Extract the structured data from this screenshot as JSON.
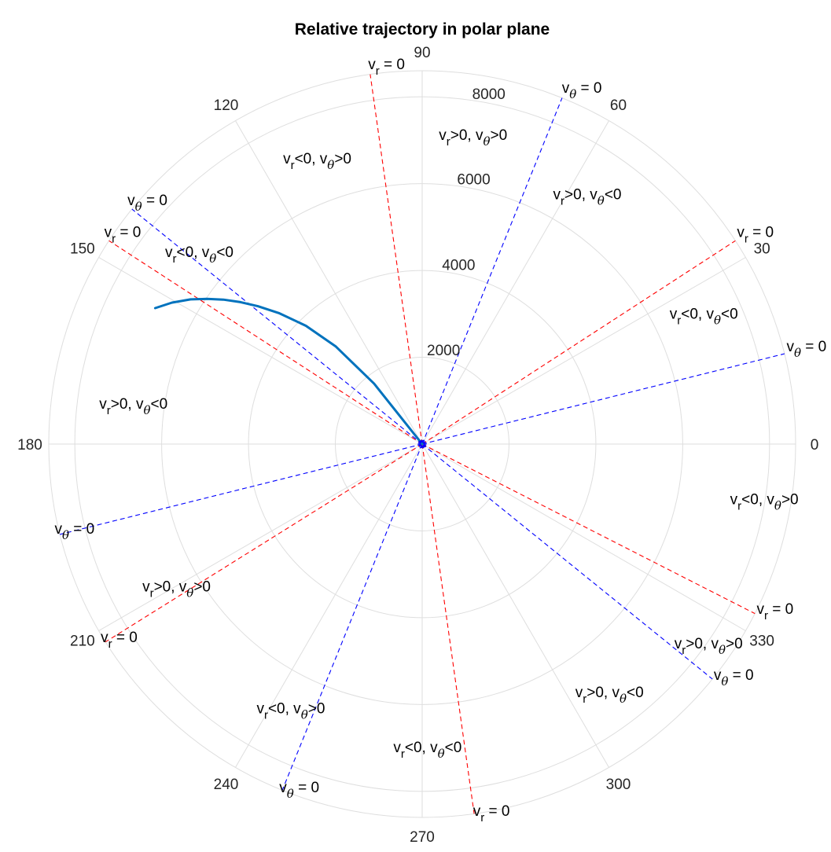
{
  "chart_data": {
    "type": "line",
    "coordinate_system": "polar",
    "title": "Relative trajectory in polar plane",
    "theta_ticks": [
      "0",
      "30",
      "60",
      "90",
      "120",
      "150",
      "180",
      "210",
      "240",
      "270",
      "300",
      "330"
    ],
    "theta_tick_values_deg": [
      0,
      30,
      60,
      90,
      120,
      150,
      180,
      210,
      240,
      270,
      300,
      330
    ],
    "r_ticks": [
      "2000",
      "4000",
      "6000",
      "8000"
    ],
    "r_tick_values": [
      2000,
      4000,
      6000,
      8000
    ],
    "rlim": [
      0,
      8600
    ],
    "r_label_angle_deg": 80,
    "grid": true,
    "trajectory": {
      "color": "#0072BD",
      "theta_deg": [
        153,
        150.5,
        148,
        146,
        144,
        142,
        140,
        137.5,
        134.5,
        131.5,
        128.5,
        125.5
      ],
      "r": [
        6900,
        6620,
        6290,
        5980,
        5660,
        5310,
        4940,
        4460,
        3820,
        3000,
        1780,
        0
      ]
    },
    "boundary_lines": [
      {
        "angle_deg": 98,
        "type": "vr",
        "color": "#FF0000",
        "label_main": "v",
        "label_sub": "r",
        "label_suffix": " = 0"
      },
      {
        "angle_deg": 33,
        "type": "vr",
        "color": "#FF0000",
        "label_main": "v",
        "label_sub": "r",
        "label_suffix": " = 0"
      },
      {
        "angle_deg": 212,
        "type": "vr",
        "color": "#FF0000",
        "label_main": "v",
        "label_sub": "r",
        "label_suffix": " = 0"
      },
      {
        "angle_deg": 147,
        "type": "vr",
        "color": "#FF0000",
        "label_main": "v",
        "label_sub": "r",
        "label_suffix": " = 0"
      },
      {
        "angle_deg": 278,
        "type": "vr",
        "color": "#FF0000",
        "label_main": "v",
        "label_sub": "r",
        "label_suffix": " = 0"
      },
      {
        "angle_deg": 333,
        "type": "vr",
        "color": "#FF0000",
        "label_main": "v",
        "label_sub": "r",
        "label_suffix": " = 0"
      },
      {
        "angle_deg": 68,
        "type": "vtheta",
        "color": "#0000FF",
        "label_main": "v",
        "label_sub": "θ",
        "label_suffix": " = 0"
      },
      {
        "angle_deg": 141,
        "type": "vtheta",
        "color": "#0000FF",
        "label_main": "v",
        "label_sub": "θ",
        "label_suffix": " = 0"
      },
      {
        "angle_deg": 14,
        "type": "vtheta",
        "color": "#0000FF",
        "label_main": "v",
        "label_sub": "θ",
        "label_suffix": " = 0"
      },
      {
        "angle_deg": 194,
        "type": "vtheta",
        "color": "#0000FF",
        "label_main": "v",
        "label_sub": "θ",
        "label_suffix": " = 0"
      },
      {
        "angle_deg": 248,
        "type": "vtheta",
        "color": "#0000FF",
        "label_main": "v",
        "label_sub": "θ",
        "label_suffix": " = 0"
      },
      {
        "angle_deg": 321,
        "type": "vtheta",
        "color": "#0000FF",
        "label_main": "v",
        "label_sub": "θ",
        "label_suffix": " = 0"
      }
    ],
    "region_labels": [
      {
        "theta_deg": 80.5,
        "r": 7100,
        "vr": ">0",
        "vtheta": ">0"
      },
      {
        "theta_deg": 110.5,
        "r": 6900,
        "vr": "<0",
        "vtheta": ">0"
      },
      {
        "theta_deg": 56,
        "r": 6800,
        "vr": ">0",
        "vtheta": "<0"
      },
      {
        "theta_deg": 140,
        "r": 6700,
        "vr": "<0",
        "vtheta": "<0"
      },
      {
        "theta_deg": 24,
        "r": 7100,
        "vr": "<0",
        "vtheta": "<0"
      },
      {
        "theta_deg": 173,
        "r": 6700,
        "vr": ">0",
        "vtheta": "<0"
      },
      {
        "theta_deg": 350,
        "r": 8000,
        "vr": "<0",
        "vtheta": ">0"
      },
      {
        "theta_deg": 324.5,
        "r": 8100,
        "vr": ">0",
        "vtheta": ">0"
      },
      {
        "theta_deg": 211,
        "r": 6600,
        "vr": ">0",
        "vtheta": ">0"
      },
      {
        "theta_deg": 306.5,
        "r": 7250,
        "vr": ">0",
        "vtheta": "<0"
      },
      {
        "theta_deg": 244,
        "r": 6900,
        "vr": "<0",
        "vtheta": ">0"
      },
      {
        "theta_deg": 271,
        "r": 7100,
        "vr": "<0",
        "vtheta": "<0"
      }
    ]
  },
  "colors": {
    "grid": "#DEDEDE",
    "tick_text": "#262626",
    "vr_line": "#FF0000",
    "vtheta_line": "#0000FF",
    "trajectory": "#0072BD"
  }
}
